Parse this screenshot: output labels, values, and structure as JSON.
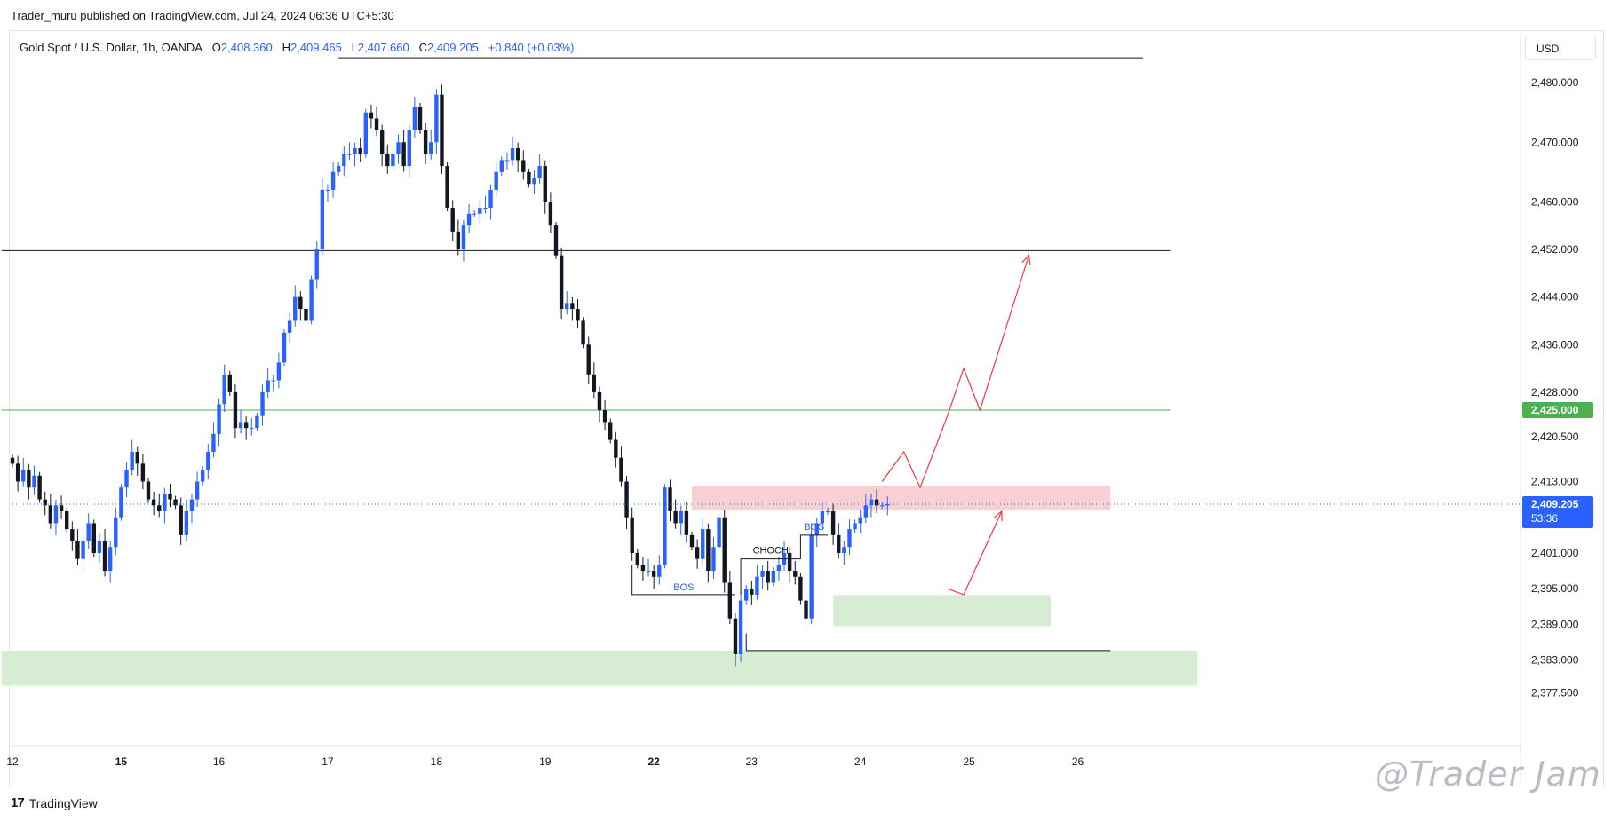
{
  "header": {
    "publisher": "Trader_muru published on TradingView.com, Jul 24, 2024 06:36 UTC+5:30"
  },
  "legend": {
    "symbol": "Gold Spot / U.S. Dollar, 1h, OANDA",
    "o_label": "O",
    "o_value": "2,408.360",
    "h_label": "H",
    "h_value": "2,409.465",
    "l_label": "L",
    "l_value": "2,407.660",
    "c_label": "C",
    "c_value": "2,409.205",
    "change": "+0.840 (+0.03%)"
  },
  "currency": "USD",
  "footer": {
    "brand": "TradingView",
    "brand_mark": "17"
  },
  "watermark": "@Trader Jam",
  "colors": {
    "up": "#2962ff",
    "down": "#131722",
    "supply": "#f8d0d3",
    "demand": "#d6ecd3",
    "arrow": "#f23645",
    "green_line": "#4caf50"
  },
  "chart_data": {
    "type": "candlestick",
    "symbol": "XAUUSD",
    "interval": "1h",
    "ylim": [
      2374,
      2486
    ],
    "y_ticks": [
      "2,480.000",
      "2,470.000",
      "2,460.000",
      "2,452.000",
      "2,444.000",
      "2,436.000",
      "2,428.000",
      "2,420.500",
      "2,413.000",
      "2,401.000",
      "2,395.000",
      "2,389.000",
      "2,383.000",
      "2,377.500"
    ],
    "y_tick_values": [
      2480,
      2470,
      2460,
      2452,
      2444,
      2436,
      2428,
      2420.5,
      2413,
      2401,
      2395,
      2389,
      2383,
      2377.5
    ],
    "x_ticks": [
      {
        "label": "12",
        "bar": 0,
        "bold": false
      },
      {
        "label": "15",
        "bar": 20,
        "bold": true
      },
      {
        "label": "16",
        "bar": 38,
        "bold": false
      },
      {
        "label": "17",
        "bar": 58,
        "bold": false
      },
      {
        "label": "18",
        "bar": 78,
        "bold": false
      },
      {
        "label": "19",
        "bar": 98,
        "bold": false
      },
      {
        "label": "22",
        "bar": 118,
        "bold": true
      },
      {
        "label": "23",
        "bar": 136,
        "bold": false
      },
      {
        "label": "24",
        "bar": 156,
        "bold": false
      },
      {
        "label": "25",
        "bar": 176,
        "bold": false
      },
      {
        "label": "26",
        "bar": 196,
        "bold": false
      }
    ],
    "closes": [
      2416,
      2413,
      2415,
      2412,
      2414,
      2410,
      2409,
      2406,
      2409,
      2408,
      2405,
      2403,
      2400,
      2403,
      2406,
      2401,
      2403,
      2398,
      2402,
      2407,
      2412,
      2415,
      2418,
      2416,
      2413,
      2410,
      2409,
      2408,
      2411,
      2410,
      2409,
      2404,
      2408,
      2410,
      2413,
      2415,
      2418,
      2421,
      2426,
      2431,
      2428,
      2422,
      2423,
      2422,
      2422,
      2424,
      2428,
      2430,
      2430,
      2433,
      2438,
      2440,
      2444,
      2442,
      2440,
      2447,
      2452,
      2462,
      2462,
      2465,
      2466,
      2468,
      2468,
      2469,
      2468,
      2475,
      2474,
      2472,
      2468,
      2466,
      2468,
      2470,
      2466,
      2472,
      2476,
      2472,
      2468,
      2470,
      2478,
      2466,
      2459,
      2455,
      2452,
      2456,
      2458,
      2458,
      2459,
      2459,
      2462,
      2465,
      2467,
      2467,
      2469,
      2467,
      2465,
      2463,
      2464,
      2466,
      2460,
      2456,
      2451,
      2442,
      2443,
      2442,
      2440,
      2436,
      2431,
      2428,
      2425,
      2423,
      2420,
      2417,
      2413,
      2407,
      2401,
      2399,
      2398,
      2398,
      2397,
      2399,
      2412,
      2408,
      2406,
      2408,
      2404,
      2402,
      2400,
      2405,
      2398,
      2402,
      2407,
      2396,
      2390,
      2384,
      2393,
      2395,
      2394,
      2397,
      2398,
      2396,
      2398,
      2399,
      2401,
      2398,
      2397,
      2393,
      2390,
      2404,
      2406,
      2408,
      2408,
      2404,
      2401,
      2402,
      2405,
      2406,
      2407,
      2409,
      2410,
      2409,
      2409,
      2409.2
    ],
    "last_price": "2,409.205",
    "countdown": "53:36",
    "green_line_label": "2,425.000",
    "levels": [
      {
        "price": 2484.2,
        "from_bar": 60,
        "to_bar": 208
      },
      {
        "price": 2451.8,
        "from_bar": -2,
        "to_bar": 213
      },
      {
        "price": 2425.0,
        "from_bar": -2,
        "to_bar": 213,
        "color": "green"
      }
    ],
    "zones": [
      {
        "kind": "supply",
        "from_bar": 125,
        "to_bar": 202,
        "top": 2412.2,
        "bottom": 2408.2
      },
      {
        "kind": "demand",
        "from_bar": 151,
        "to_bar": 191,
        "top": 2393.9,
        "bottom": 2388.7
      },
      {
        "kind": "demand",
        "from_bar": -2,
        "to_bar": 218,
        "top": 2384.6,
        "bottom": 2378.7
      }
    ],
    "structure": [
      {
        "label": "BOS",
        "from_bar": 114,
        "to_bar": 133,
        "price": 2394.0,
        "bracket_bar": 114,
        "bracket_from": 2399.0
      },
      {
        "label": "CHOCH",
        "from_bar": 134,
        "to_bar": 145,
        "price": 2400.0,
        "bracket_bar": 134,
        "bracket_from": 2394.0
      },
      {
        "label": "BOS",
        "from_bar": 145,
        "to_bar": 150,
        "price": 2404.0,
        "bracket_bar": 145,
        "bracket_from": 2400.0
      },
      {
        "label": "",
        "from_bar": 135,
        "to_bar": 202,
        "price": 2384.6,
        "bracket_bar": 135,
        "bracket_from": 2387.5
      }
    ],
    "projection_1": [
      [
        160,
        2413
      ],
      [
        164,
        2418
      ],
      [
        167,
        2412
      ],
      [
        172,
        2424
      ],
      [
        175,
        2432
      ],
      [
        178,
        2425
      ],
      [
        187,
        2451
      ]
    ],
    "projection_2": [
      [
        172,
        2395
      ],
      [
        175,
        2394
      ],
      [
        182,
        2408
      ]
    ]
  }
}
